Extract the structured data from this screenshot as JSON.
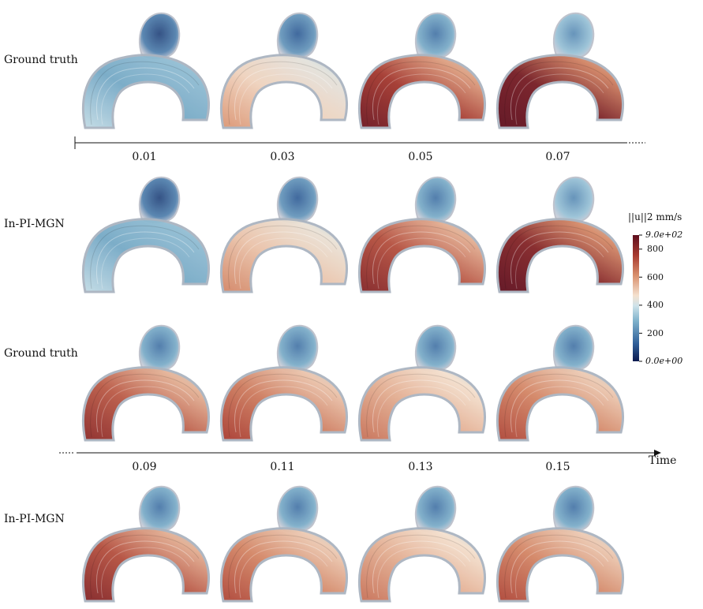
{
  "rows": [
    {
      "label": "Ground truth",
      "panels": [
        "t1",
        "t2",
        "t3",
        "t4"
      ],
      "intensity": [
        0.3,
        0.55,
        0.85,
        0.95
      ]
    },
    {
      "label": "In-PI-MGN",
      "panels": [
        "t1",
        "t2",
        "t3",
        "t4"
      ],
      "intensity": [
        0.3,
        0.58,
        0.8,
        0.92
      ]
    },
    {
      "label": "Ground truth",
      "panels": [
        "t5",
        "t6",
        "t7",
        "t8"
      ],
      "intensity": [
        0.78,
        0.72,
        0.62,
        0.7
      ]
    },
    {
      "label": "In-PI-MGN",
      "panels": [
        "t5",
        "t6",
        "t7",
        "t8"
      ],
      "intensity": [
        0.8,
        0.7,
        0.62,
        0.7
      ]
    }
  ],
  "axis1": {
    "ticks": [
      "0.01",
      "0.03",
      "0.05",
      "0.07"
    ]
  },
  "axis2": {
    "ticks": [
      "0.09",
      "0.11",
      "0.13",
      "0.15"
    ],
    "end_label": "Time"
  },
  "colorbar": {
    "title": "||u||2 mm/s",
    "top_label": "9.0e+02",
    "bottom_label": "0.0e+00",
    "ticks": [
      "800",
      "600",
      "400",
      "200"
    ],
    "colors": [
      "#0c1a4f",
      "#2f5f99",
      "#7fb2cc",
      "#cfe3ea",
      "#f4e1cf",
      "#d9906d",
      "#a83a2f",
      "#5e0e1d"
    ]
  }
}
